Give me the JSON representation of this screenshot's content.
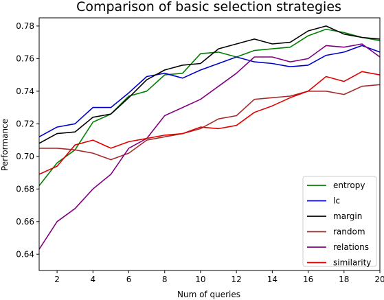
{
  "chart_data": {
    "type": "line",
    "title": "Comparison of basic selection strategies",
    "xlabel": "Num of queries",
    "ylabel": "Performance",
    "xlim": [
      1,
      20
    ],
    "ylim": [
      0.63,
      0.785
    ],
    "xticks": [
      2,
      4,
      6,
      8,
      10,
      12,
      14,
      16,
      18,
      20
    ],
    "yticks": [
      0.64,
      0.66,
      0.68,
      0.7,
      0.72,
      0.74,
      0.76,
      0.78
    ],
    "ytick_labels": [
      "0.64",
      "0.66",
      "0.68",
      "0.70",
      "0.72",
      "0.74",
      "0.76",
      "0.78"
    ],
    "grid": false,
    "legend": "lower-right",
    "x": [
      1,
      2,
      3,
      4,
      5,
      6,
      7,
      8,
      9,
      10,
      11,
      12,
      13,
      14,
      15,
      16,
      17,
      18,
      19,
      20
    ],
    "series": [
      {
        "name": "entropy",
        "color": "#008000",
        "values": [
          0.682,
          0.696,
          0.704,
          0.721,
          0.726,
          0.737,
          0.74,
          0.75,
          0.751,
          0.763,
          0.764,
          0.761,
          0.765,
          0.766,
          0.767,
          0.774,
          0.778,
          0.776,
          0.773,
          0.771
        ]
      },
      {
        "name": "lc",
        "color": "#0000cc",
        "values": [
          0.712,
          0.718,
          0.72,
          0.73,
          0.73,
          0.739,
          0.749,
          0.751,
          0.748,
          0.753,
          0.757,
          0.761,
          0.758,
          0.757,
          0.755,
          0.756,
          0.762,
          0.764,
          0.768,
          0.764
        ]
      },
      {
        "name": "margin",
        "color": "#000000",
        "values": [
          0.708,
          0.714,
          0.715,
          0.724,
          0.726,
          0.736,
          0.747,
          0.753,
          0.756,
          0.757,
          0.766,
          0.769,
          0.772,
          0.769,
          0.77,
          0.777,
          0.78,
          0.775,
          0.773,
          0.772
        ]
      },
      {
        "name": "random",
        "color": "#a52a2a",
        "values": [
          0.705,
          0.705,
          0.704,
          0.702,
          0.698,
          0.702,
          0.71,
          0.712,
          0.714,
          0.717,
          0.723,
          0.725,
          0.735,
          0.736,
          0.737,
          0.74,
          0.74,
          0.738,
          0.743,
          0.744
        ]
      },
      {
        "name": "relations",
        "color": "#800080",
        "values": [
          0.643,
          0.66,
          0.668,
          0.68,
          0.689,
          0.705,
          0.711,
          0.725,
          0.73,
          0.735,
          0.743,
          0.751,
          0.761,
          0.761,
          0.758,
          0.76,
          0.768,
          0.767,
          0.769,
          0.761
        ]
      },
      {
        "name": "similarity",
        "color": "#e00000",
        "values": [
          0.689,
          0.694,
          0.707,
          0.71,
          0.705,
          0.709,
          0.711,
          0.713,
          0.714,
          0.718,
          0.717,
          0.719,
          0.727,
          0.731,
          0.736,
          0.74,
          0.749,
          0.746,
          0.752,
          0.75
        ]
      }
    ]
  }
}
